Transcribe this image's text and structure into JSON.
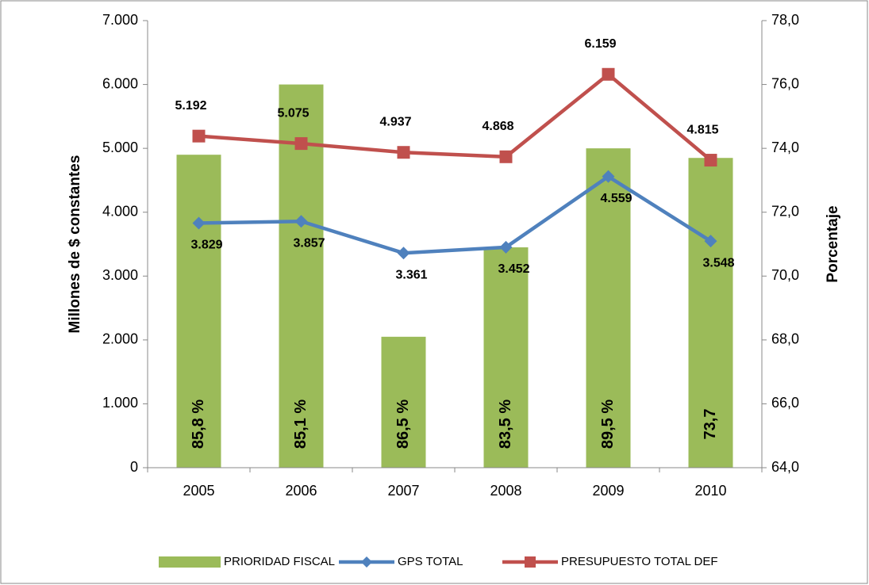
{
  "chart_data": {
    "type": "combo",
    "categories": [
      "2005",
      "2006",
      "2007",
      "2008",
      "2009",
      "2010"
    ],
    "series": [
      {
        "name": "PRIORIDAD FISCAL",
        "type": "bar",
        "axis": "y2",
        "color": "#9bbb59",
        "values": [
          73.8,
          76.0,
          68.1,
          70.9,
          74.0,
          73.7
        ]
      },
      {
        "name": "GPS TOTAL",
        "type": "line",
        "color": "#4f81bd",
        "marker": "diamond",
        "values": [
          3829,
          3857,
          3361,
          3452,
          4559,
          3548
        ],
        "value_labels": [
          "3.829",
          "3.857",
          "3.361",
          "3.452",
          "4.559",
          "3.548"
        ]
      },
      {
        "name": "PRESUPUESTO TOTAL DEF",
        "type": "line",
        "color": "#c0504d",
        "marker": "square",
        "values": [
          5192,
          5075,
          4937,
          4868,
          6159,
          4815
        ],
        "value_labels": [
          "5.192",
          "5.075",
          "4.937",
          "4.868",
          "6.159",
          "4.815"
        ]
      }
    ],
    "annotations": [
      "85,8 %",
      "85,1 %",
      "86,5 %",
      "83,5 %",
      "89,5 %",
      "73,7"
    ],
    "y_label": "Millones de $ constantes",
    "y2_label": "Porcentaje",
    "ylim": [
      0,
      7000
    ],
    "yticks": [
      0,
      {
        "value": 1000,
        "label": "1.000"
      },
      {
        "value": 2000,
        "label": "2.000"
      },
      {
        "value": 3000,
        "label": "3.000"
      },
      {
        "value": 4000,
        "label": "4.000"
      },
      {
        "value": 5000,
        "label": "5.000"
      },
      {
        "value": 6000,
        "label": "6.000"
      },
      {
        "value": 7000,
        "label": "7.000"
      }
    ],
    "y2lim": [
      64,
      78
    ],
    "y2ticks": [
      {
        "value": 64,
        "label": "64,0"
      },
      {
        "value": 66,
        "label": "66,0"
      },
      {
        "value": 68,
        "label": "68,0"
      },
      {
        "value": 70,
        "label": "70,0"
      },
      {
        "value": 72,
        "label": "72,0"
      },
      {
        "value": 74,
        "label": "74,0"
      },
      {
        "value": 76,
        "label": "76,0"
      },
      {
        "value": 78,
        "label": "78,0"
      }
    ],
    "legend": "bottom"
  }
}
